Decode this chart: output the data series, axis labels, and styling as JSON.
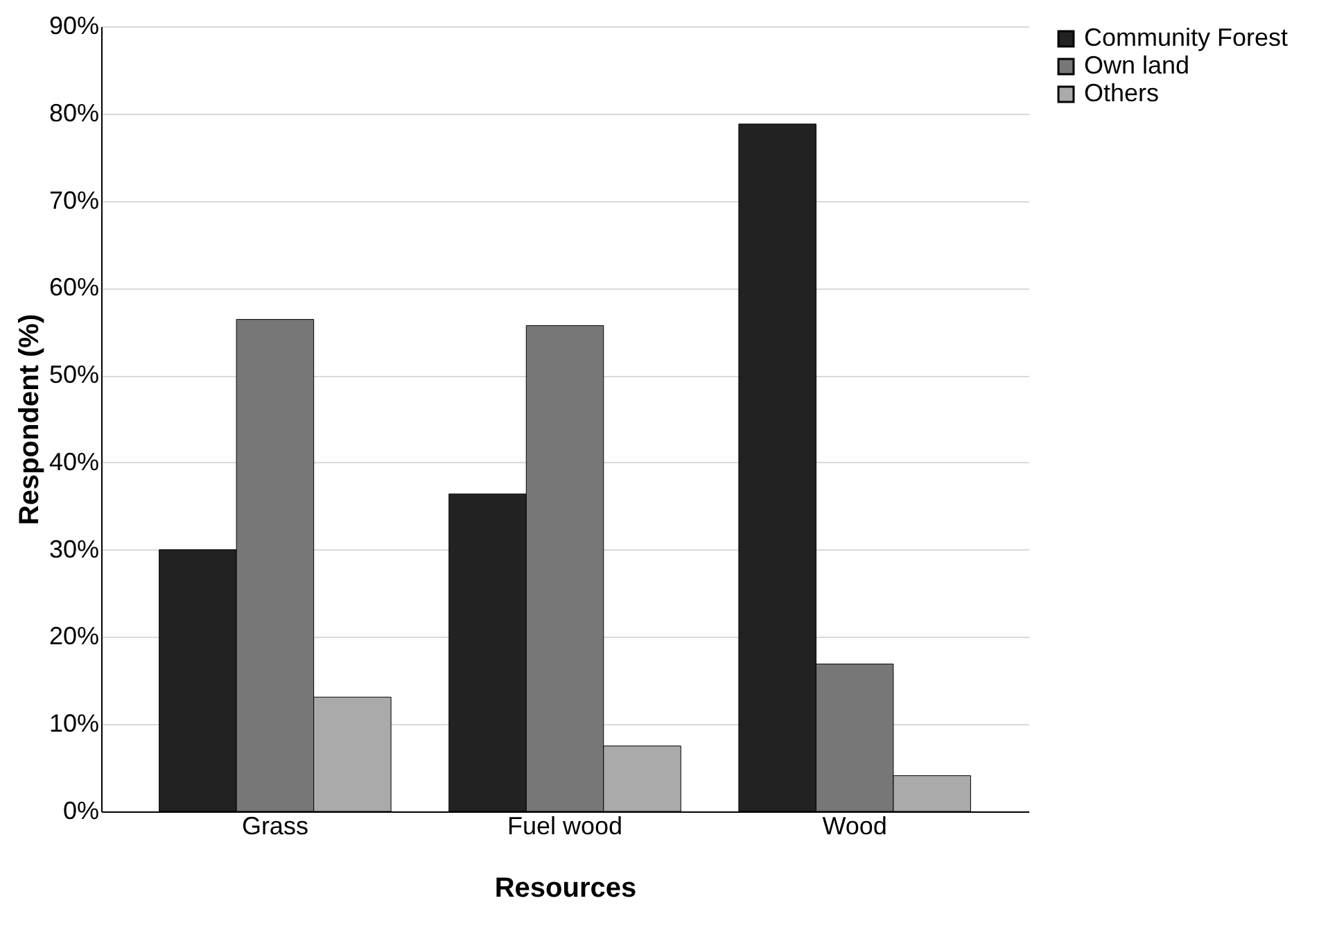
{
  "chart_data": {
    "type": "bar",
    "xlabel": "Resources",
    "ylabel": "Respondent (%)",
    "categories": [
      "Grass",
      "Fuel wood",
      "Wood"
    ],
    "series": [
      {
        "name": "Community Forest",
        "color": "#222222",
        "values": [
          30.0,
          36.4,
          78.8
        ]
      },
      {
        "name": "Own land",
        "color": "#777777",
        "values": [
          56.4,
          55.7,
          16.9
        ]
      },
      {
        "name": "Others",
        "color": "#aaaaaa",
        "values": [
          13.1,
          7.5,
          4.1
        ]
      }
    ],
    "ylim": [
      0,
      90
    ],
    "yticks": [
      {
        "value": 0,
        "label": "0%"
      },
      {
        "value": 10,
        "label": "10%"
      },
      {
        "value": 20,
        "label": "20%"
      },
      {
        "value": 30,
        "label": "30%"
      },
      {
        "value": 40,
        "label": "40%"
      },
      {
        "value": 50,
        "label": "50%"
      },
      {
        "value": 60,
        "label": "60%"
      },
      {
        "value": 70,
        "label": "70%"
      },
      {
        "value": 80,
        "label": "80%"
      },
      {
        "value": 90,
        "label": "90%"
      }
    ],
    "grid": "y",
    "legend": "right"
  }
}
